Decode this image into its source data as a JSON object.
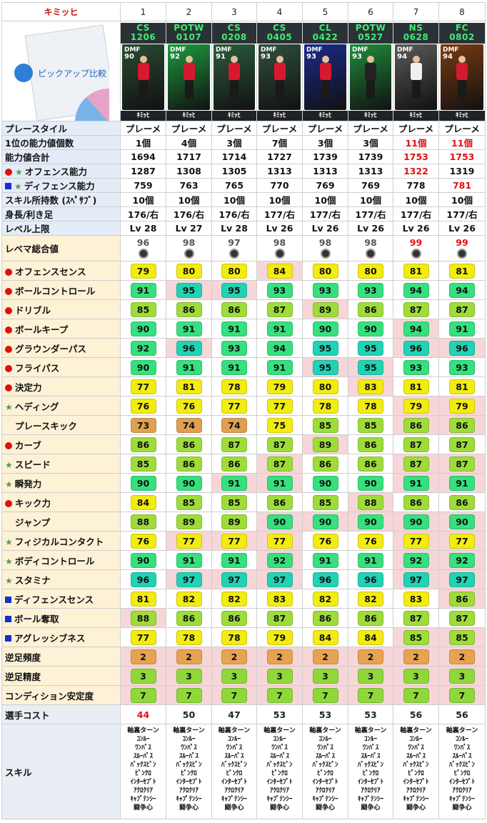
{
  "header": {
    "player_name": "キミッヒ",
    "columns": [
      "1",
      "2",
      "3",
      "4",
      "5",
      "6",
      "7",
      "8"
    ],
    "pickup_label": "ピックアップ比較"
  },
  "cards": [
    {
      "code_line1": "CS",
      "code_line2": "1206",
      "pos": "DMF",
      "ovr": "90",
      "name": "ｷﾐｯﾋ",
      "bg": "#2b4a32",
      "kit": "#d7192f"
    },
    {
      "code_line1": "POTW",
      "code_line2": "0107",
      "pos": "DMF",
      "ovr": "92",
      "name": "ｷﾐｯﾋ",
      "bg": "#1d9a3e",
      "kit": "#d7192f"
    },
    {
      "code_line1": "CS",
      "code_line2": "0208",
      "pos": "DMF",
      "ovr": "91",
      "name": "ｷﾐｯﾋ",
      "bg": "#2c5c3c",
      "kit": "#d7192f"
    },
    {
      "code_line1": "CS",
      "code_line2": "0405",
      "pos": "DMF",
      "ovr": "93",
      "name": "ｷﾐｯﾋ",
      "bg": "#30503a",
      "kit": "#d7192f"
    },
    {
      "code_line1": "CL",
      "code_line2": "0422",
      "pos": "DMF",
      "ovr": "93",
      "name": "ｷﾐｯﾋ",
      "bg": "#1a2a8a",
      "kit": "#d7192f"
    },
    {
      "code_line1": "POTW",
      "code_line2": "0527",
      "pos": "DMF",
      "ovr": "93",
      "name": "ｷﾐｯﾋ",
      "bg": "#1f8c3a",
      "kit": "#222222"
    },
    {
      "code_line1": "NS",
      "code_line2": "0628",
      "pos": "DMF",
      "ovr": "94",
      "name": "ｷﾐｯﾋ",
      "bg": "#5a5a5a",
      "kit": "#f0f0f0"
    },
    {
      "code_line1": "FC",
      "code_line2": "0802",
      "pos": "DMF",
      "ovr": "94",
      "name": "ｷﾐｯﾋ",
      "bg": "#7a3a12",
      "kit": "#d7192f"
    }
  ],
  "info_rows": [
    {
      "label": "プレースタイル",
      "values": [
        "プレーメ",
        "プレーメ",
        "プレーメ",
        "プレーメ",
        "プレーメ",
        "プレーメ",
        "プレーメ",
        "プレーメ"
      ],
      "red": []
    },
    {
      "label": "1位の能力値個数",
      "values": [
        "1個",
        "4個",
        "3個",
        "7個",
        "3個",
        "3個",
        "11個",
        "11個"
      ],
      "red": [
        6,
        7
      ]
    },
    {
      "label": "能力値合計",
      "values": [
        "1694",
        "1717",
        "1714",
        "1727",
        "1739",
        "1739",
        "1753",
        "1753"
      ],
      "red": [
        6,
        7
      ]
    },
    {
      "label": "オフェンス能力",
      "marks": [
        "dot",
        "star"
      ],
      "values": [
        "1287",
        "1308",
        "1305",
        "1313",
        "1313",
        "1313",
        "1322",
        "1319"
      ],
      "red": [
        6
      ]
    },
    {
      "label": "ディフェンス能力",
      "marks": [
        "sq",
        "star"
      ],
      "values": [
        "759",
        "763",
        "765",
        "770",
        "769",
        "769",
        "778",
        "781"
      ],
      "red": [
        7
      ]
    },
    {
      "label": "スキル所持数 (ｽﾍﾟｻﾌﾞ)",
      "values": [
        "10個",
        "10個",
        "10個",
        "10個",
        "10個",
        "10個",
        "10個",
        "10個"
      ],
      "red": []
    },
    {
      "label": "身長/利き足",
      "values": [
        "176/右",
        "176/右",
        "176/右",
        "177/右",
        "177/右",
        "177/右",
        "177/右",
        "177/右"
      ],
      "red": []
    },
    {
      "label": "レベル上限",
      "values": [
        "Lv 28",
        "Lv 27",
        "Lv 28",
        "Lv 26",
        "Lv 26",
        "Lv 26",
        "Lv 26",
        "Lv 26"
      ],
      "red": []
    }
  ],
  "rebema": {
    "label": "レベマ総合値",
    "values": [
      "96",
      "98",
      "97",
      "98",
      "98",
      "98",
      "99",
      "99"
    ],
    "red": [
      6,
      7
    ]
  },
  "stats": [
    {
      "label": "オフェンスセンス",
      "mark": "dot",
      "values": [
        79,
        80,
        80,
        84,
        80,
        80,
        81,
        81
      ],
      "pink": [
        3
      ]
    },
    {
      "label": "ボールコントロール",
      "mark": "dot",
      "values": [
        91,
        95,
        95,
        93,
        93,
        93,
        94,
        94
      ],
      "pink": [
        1,
        2
      ]
    },
    {
      "label": "ドリブル",
      "mark": "dot",
      "values": [
        85,
        86,
        86,
        87,
        89,
        86,
        87,
        87
      ],
      "pink": [
        4
      ]
    },
    {
      "label": "ボールキープ",
      "mark": "dot",
      "values": [
        90,
        91,
        91,
        91,
        90,
        90,
        94,
        91
      ],
      "pink": [
        6
      ]
    },
    {
      "label": "グラウンダーパス",
      "mark": "dot",
      "values": [
        92,
        96,
        93,
        94,
        95,
        95,
        96,
        96
      ],
      "pink": [
        1,
        6,
        7
      ]
    },
    {
      "label": "フライパス",
      "mark": "dot",
      "values": [
        90,
        91,
        91,
        91,
        95,
        95,
        93,
        93
      ],
      "pink": [
        4,
        5
      ]
    },
    {
      "label": "決定力",
      "mark": "dot",
      "values": [
        77,
        81,
        78,
        79,
        80,
        83,
        81,
        81
      ],
      "pink": [
        5
      ]
    },
    {
      "label": "ヘディング",
      "mark": "star",
      "values": [
        76,
        76,
        77,
        77,
        78,
        78,
        79,
        79
      ],
      "pink": [
        6,
        7
      ]
    },
    {
      "label": "プレースキック",
      "mark": "none",
      "values": [
        73,
        74,
        74,
        75,
        85,
        85,
        86,
        86
      ],
      "pink": [
        6,
        7
      ]
    },
    {
      "label": "カーブ",
      "mark": "dot",
      "values": [
        86,
        86,
        87,
        87,
        89,
        86,
        87,
        87
      ],
      "pink": [
        4
      ]
    },
    {
      "label": "スピード",
      "mark": "star",
      "values": [
        85,
        86,
        86,
        87,
        86,
        86,
        87,
        87
      ],
      "pink": [
        3,
        6,
        7
      ]
    },
    {
      "label": "瞬発力",
      "mark": "star",
      "values": [
        90,
        90,
        91,
        91,
        90,
        90,
        91,
        91
      ],
      "pink": [
        2,
        3,
        6,
        7
      ]
    },
    {
      "label": "キック力",
      "mark": "dot",
      "values": [
        84,
        85,
        85,
        86,
        85,
        88,
        86,
        86
      ],
      "pink": [
        5
      ]
    },
    {
      "label": "ジャンプ",
      "mark": "none",
      "values": [
        88,
        89,
        89,
        90,
        90,
        90,
        90,
        90
      ],
      "pink": [
        3,
        4,
        5,
        6,
        7
      ]
    },
    {
      "label": "フィジカルコンタクト",
      "mark": "star",
      "values": [
        76,
        77,
        77,
        77,
        76,
        76,
        77,
        77
      ],
      "pink": [
        1,
        2,
        3,
        6,
        7
      ]
    },
    {
      "label": "ボディコントロール",
      "mark": "star",
      "values": [
        90,
        91,
        91,
        92,
        91,
        91,
        92,
        92
      ],
      "pink": [
        3,
        6,
        7
      ]
    },
    {
      "label": "スタミナ",
      "mark": "star",
      "values": [
        96,
        97,
        97,
        97,
        96,
        96,
        97,
        97
      ],
      "pink": [
        1,
        2,
        3,
        6,
        7
      ]
    },
    {
      "label": "ディフェンスセンス",
      "mark": "sq",
      "values": [
        81,
        82,
        82,
        83,
        82,
        82,
        83,
        86
      ],
      "pink": [
        7
      ]
    },
    {
      "label": "ボール奪取",
      "mark": "sq",
      "values": [
        88,
        86,
        86,
        87,
        86,
        86,
        87,
        87
      ],
      "pink": [
        0
      ]
    },
    {
      "label": "アグレッシブネス",
      "mark": "sq",
      "values": [
        77,
        78,
        78,
        79,
        84,
        84,
        85,
        85
      ],
      "pink": [
        6,
        7
      ]
    }
  ],
  "extra_rows": [
    {
      "label": "逆足頻度",
      "values": [
        2,
        2,
        2,
        2,
        2,
        2,
        2,
        2
      ],
      "kind": "orange"
    },
    {
      "label": "逆足精度",
      "values": [
        3,
        3,
        3,
        3,
        3,
        3,
        3,
        3
      ],
      "kind": "lime"
    },
    {
      "label": "コンディション安定度",
      "values": [
        7,
        7,
        7,
        7,
        7,
        7,
        7,
        7
      ],
      "kind": "lime"
    }
  ],
  "cost": {
    "label": "選手コスト",
    "values": [
      "44",
      "50",
      "47",
      "53",
      "53",
      "53",
      "56",
      "56"
    ],
    "red": [
      0
    ]
  },
  "skills": {
    "label": "スキル",
    "list": [
      "軸裏ターン",
      "ｺﾝﾙｰ",
      "ﾜﾝﾊﾟｽ",
      "ｽﾙｰﾊﾟｽ",
      "ﾊﾞｯｸｽﾋﾟﾝ",
      "ﾋﾟﾝｸﾛ",
      "ｲﾝﾀｰｾﾌﾟﾄ",
      "ｱｸﾛｸﾘｱ",
      "ｷｬﾌﾟﾃﾝｼｰ",
      "闘争心"
    ]
  },
  "colors": {
    "red": "#e01010",
    "pink": "#f6d6d8",
    "label_blue": "#e4ecf7",
    "label_yellow": "#fdf1d6"
  }
}
